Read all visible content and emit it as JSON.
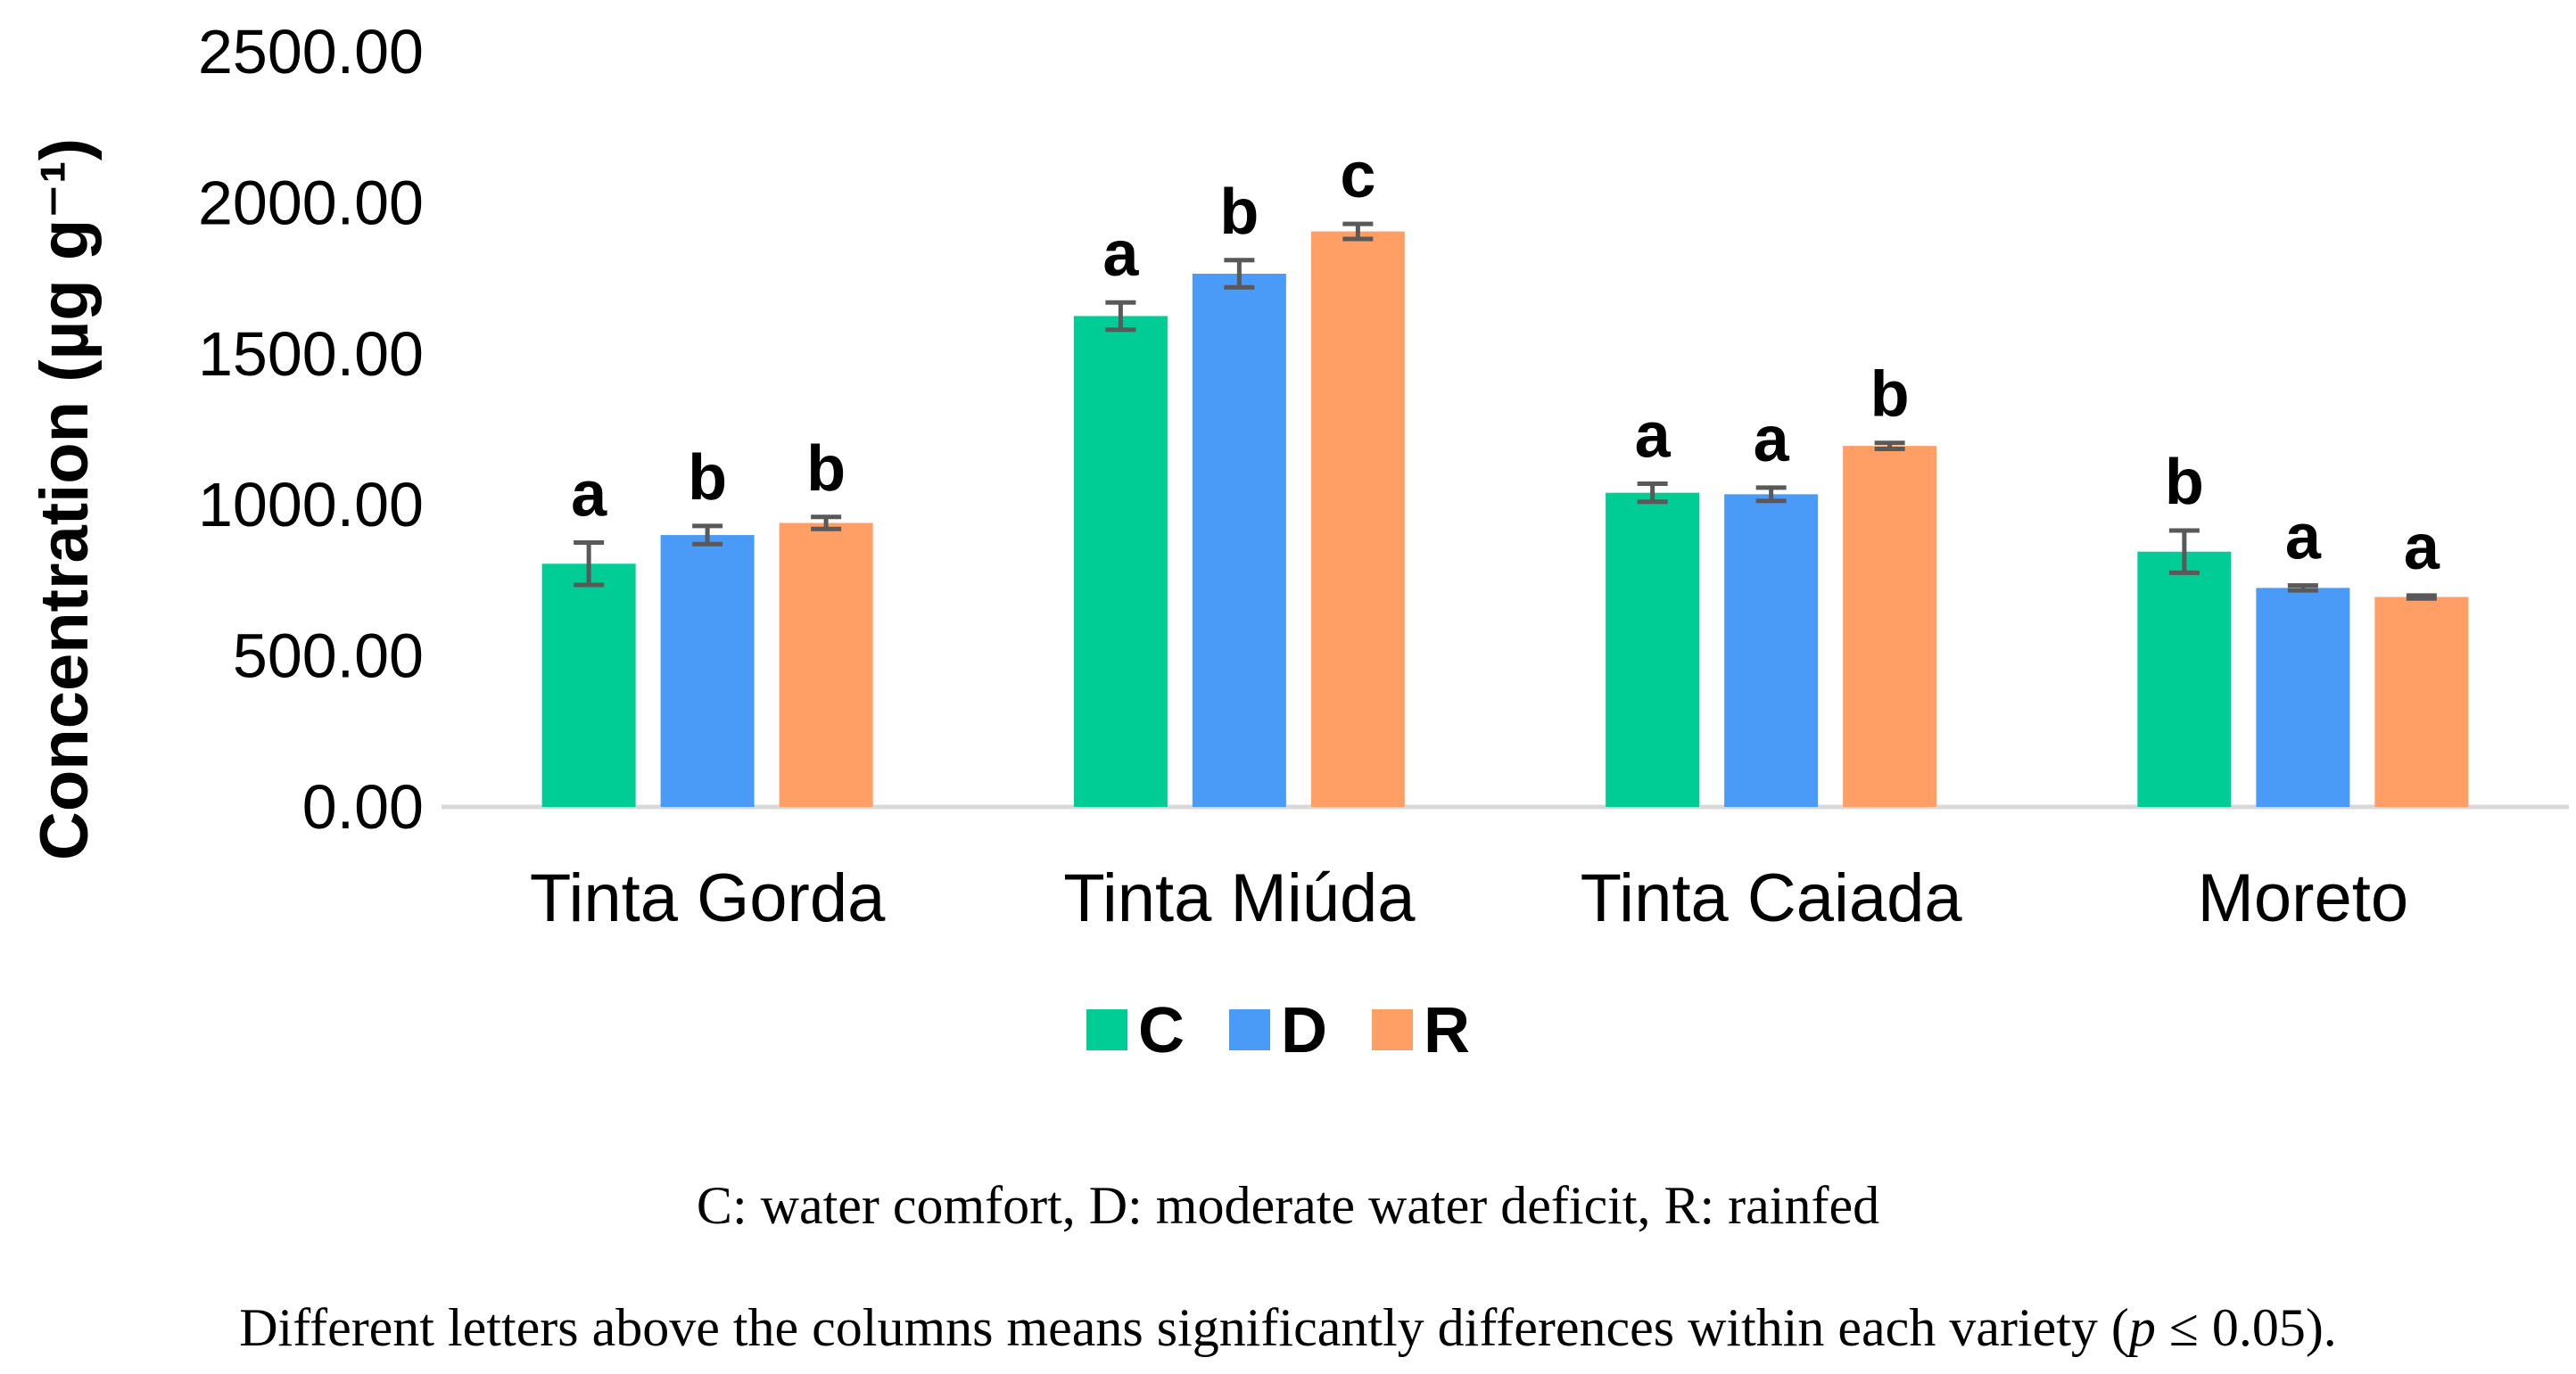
{
  "chart_data": {
    "type": "bar",
    "title": "",
    "xlabel": "",
    "ylabel": "Concentration (µg g⁻¹)",
    "ylim": [
      0,
      2500
    ],
    "yticks": [
      "0.00",
      "500.00",
      "1000.00",
      "1500.00",
      "2000.00",
      "2500.00"
    ],
    "ytick_values": [
      0,
      500,
      1000,
      1500,
      2000,
      2500
    ],
    "grid": false,
    "legend_position": "bottom-center",
    "categories": [
      "Tinta Gorda",
      "Tinta Miúda",
      "Tinta Caiada",
      "Moreto"
    ],
    "series": [
      {
        "name": "C",
        "color": "#00CC96",
        "values": [
          805,
          1625,
          1040,
          845
        ],
        "errors": [
          70,
          45,
          30,
          70
        ],
        "letters": [
          "a",
          "a",
          "a",
          "b"
        ]
      },
      {
        "name": "D",
        "color": "#4A9BF7",
        "values": [
          900,
          1765,
          1035,
          725
        ],
        "errors": [
          30,
          45,
          22,
          8
        ],
        "letters": [
          "b",
          "b",
          "a",
          "a"
        ]
      },
      {
        "name": "R",
        "color": "#FF9F66",
        "values": [
          940,
          1905,
          1195,
          695
        ],
        "errors": [
          20,
          25,
          10,
          5
        ],
        "letters": [
          "b",
          "c",
          "b",
          "a"
        ]
      }
    ]
  },
  "captions": {
    "line1": "C: water comfort, D: moderate water deficit, R: rainfed",
    "line2": "Different letters above the columns means significantly differences within each variety (p ≤ 0.05)."
  },
  "style": {
    "axis_color": "#D9D9D9",
    "error_bar_color": "#595959",
    "text_color": "#000000"
  }
}
